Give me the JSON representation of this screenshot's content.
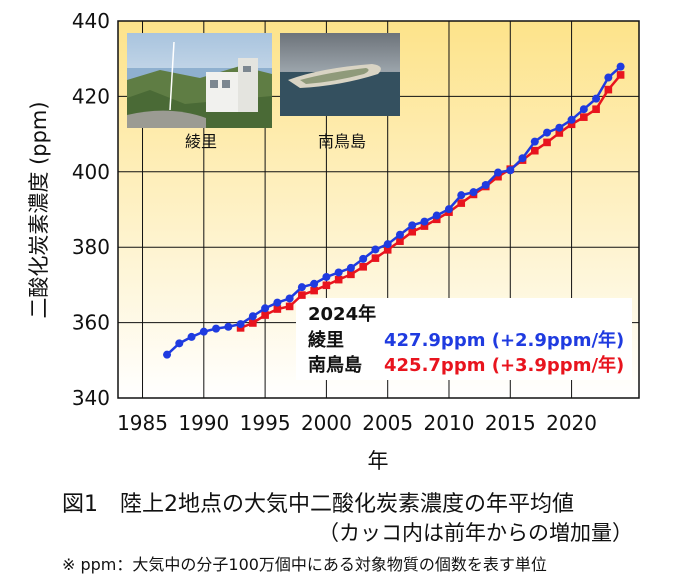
{
  "chart_data": {
    "type": "line",
    "xlabel": "年",
    "ylabel": "二酸化炭素濃度 (ppm)",
    "xlim": [
      1983,
      2025.5
    ],
    "ylim": [
      340,
      440
    ],
    "xticks": [
      1985,
      1990,
      1995,
      2000,
      2005,
      2010,
      2015,
      2020
    ],
    "yticks": [
      340,
      360,
      380,
      400,
      420,
      440
    ],
    "grid": true,
    "series": [
      {
        "name": "綾里",
        "color": "#1f3be0",
        "marker": "circle",
        "x": [
          1987,
          1988,
          1989,
          1990,
          1991,
          1992,
          1993,
          1994,
          1995,
          1996,
          1997,
          1998,
          1999,
          2000,
          2001,
          2002,
          2003,
          2004,
          2005,
          2006,
          2007,
          2008,
          2009,
          2010,
          2011,
          2012,
          2013,
          2014,
          2015,
          2016,
          2017,
          2018,
          2019,
          2020,
          2021,
          2022,
          2023,
          2024
        ],
        "y": [
          351.5,
          354.5,
          356.2,
          357.6,
          358.4,
          358.9,
          359.6,
          361.7,
          363.8,
          365.3,
          366.4,
          369.4,
          370.3,
          372.1,
          373.3,
          374.5,
          376.9,
          379.4,
          380.8,
          383.3,
          385.8,
          386.8,
          388.4,
          390.1,
          393.8,
          394.6,
          396.5,
          399.8,
          400.4,
          403.6,
          408.0,
          410.4,
          411.7,
          413.8,
          416.6,
          419.4,
          425.0,
          427.9
        ]
      },
      {
        "name": "南鳥島",
        "color": "#e8141e",
        "marker": "square",
        "x": [
          1993,
          1994,
          1995,
          1996,
          1997,
          1998,
          1999,
          2000,
          2001,
          2002,
          2003,
          2004,
          2005,
          2006,
          2007,
          2008,
          2009,
          2010,
          2011,
          2012,
          2013,
          2014,
          2015,
          2016,
          2017,
          2018,
          2019,
          2020,
          2021,
          2022,
          2023,
          2024
        ],
        "y": [
          358.6,
          359.9,
          362.0,
          363.6,
          364.3,
          367.3,
          368.5,
          369.9,
          371.4,
          372.8,
          374.8,
          377.1,
          379.3,
          381.6,
          384.1,
          385.6,
          387.4,
          389.3,
          391.7,
          394.0,
          396.1,
          398.7,
          400.7,
          403.1,
          405.6,
          407.8,
          410.3,
          412.6,
          414.5,
          416.6,
          421.8,
          425.7
        ]
      }
    ]
  },
  "inset": {
    "year": "2024年",
    "rows": [
      {
        "station": "綾里",
        "value": "427.9ppm (+2.9ppm/年)",
        "color": "#1f3be0"
      },
      {
        "station": "南鳥島",
        "value": "425.7ppm (+3.9ppm/年)",
        "color": "#e8141e"
      }
    ]
  },
  "photos": [
    {
      "label": "綾里"
    },
    {
      "label": "南鳥島"
    }
  ],
  "caption": {
    "title": "図1　陸上2地点の大気中二酸化炭素濃度の年平均値",
    "subtitle": "（カッコ内は前年からの増加量）",
    "note": "※ ppm：大気中の分子100万個中にある対象物質の個数を表す単位"
  },
  "colors": {
    "plot_bg_top": "#fde38a",
    "plot_bg_bottom": "#ffffff",
    "grid": "#111111"
  }
}
